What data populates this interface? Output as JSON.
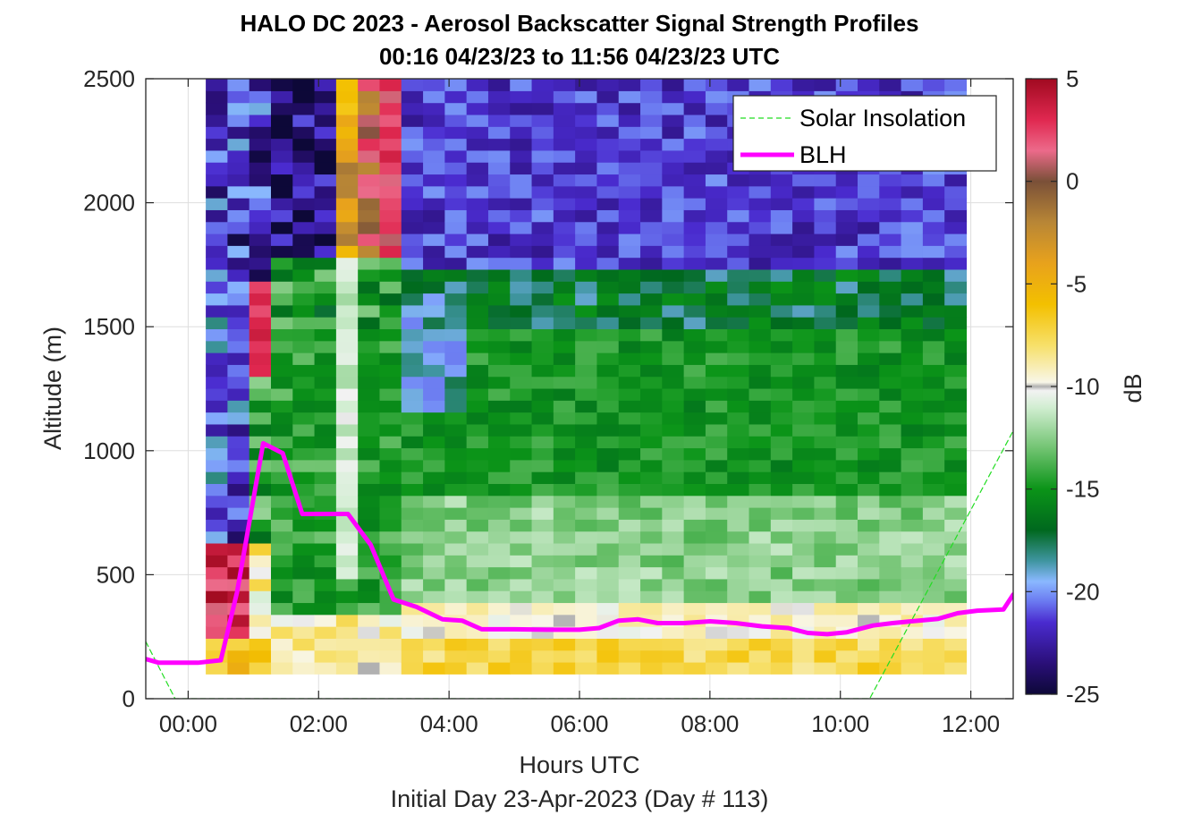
{
  "chart_data": {
    "type": "heatmap",
    "title_line1": "HALO DC 2023 - Aerosol Backscatter Signal Strength Profiles",
    "title_line2": "00:16 04/23/23 to 11:56 04/23/23  UTC",
    "xlabel": "Hours UTC",
    "footer": "Initial Day 23-Apr-2023 (Day # 113)",
    "ylabel": "Altitude (m)",
    "colorbar_label": "dB",
    "xlim": [
      -0.65,
      12.65
    ],
    "ylim": [
      0,
      2500
    ],
    "clim": [
      -25,
      5
    ],
    "x_ticks": [
      0,
      2,
      4,
      6,
      8,
      10,
      12
    ],
    "x_tick_labels": [
      "00:00",
      "02:00",
      "04:00",
      "06:00",
      "08:00",
      "10:00",
      "12:00"
    ],
    "y_ticks": [
      0,
      500,
      1000,
      1500,
      2000,
      2500
    ],
    "y_tick_labels": [
      "0",
      "500",
      "1000",
      "1500",
      "2000",
      "2500"
    ],
    "colorbar_ticks": [
      5,
      0,
      -5,
      -10,
      -15,
      -20,
      -25
    ],
    "colorbar_tick_labels": [
      "5",
      "0",
      "-5",
      "-10",
      "-15",
      "-20",
      "-25"
    ],
    "grid": true,
    "legend_position": "top-right",
    "heatmap": {
      "x_start": 0.27,
      "x_end": 11.93,
      "n_columns": 35,
      "y_bottom": 100,
      "y_top": 2500,
      "n_rows": 50
    },
    "series": [
      {
        "name": "Solar Insolation",
        "style": "dashed",
        "color": "#22dd22",
        "x": [
          -0.65,
          -0.2,
          10.45,
          12.65
        ],
        "y": [
          230,
          0,
          0,
          1080
        ]
      },
      {
        "name": "BLH",
        "style": "solid",
        "color": "#ff00ff",
        "x": [
          -0.65,
          -0.45,
          0.15,
          0.5,
          0.75,
          1.15,
          1.45,
          1.75,
          2.1,
          2.45,
          2.8,
          3.15,
          3.5,
          3.9,
          4.2,
          4.5,
          5.0,
          5.5,
          6.0,
          6.3,
          6.6,
          6.9,
          7.2,
          7.6,
          8.0,
          8.4,
          8.8,
          9.2,
          9.5,
          9.8,
          10.1,
          10.5,
          10.8,
          11.2,
          11.5,
          11.8,
          12.1,
          12.5,
          12.65
        ],
        "y": [
          160,
          145,
          145,
          155,
          430,
          1030,
          990,
          745,
          745,
          745,
          620,
          400,
          370,
          320,
          315,
          280,
          280,
          278,
          278,
          285,
          315,
          320,
          305,
          305,
          312,
          305,
          292,
          285,
          265,
          260,
          268,
          295,
          305,
          315,
          322,
          345,
          355,
          360,
          420
        ]
      }
    ],
    "colors": {
      "frame": "#262626",
      "grid": "#dedede"
    },
    "colorbar_stops": [
      {
        "value": -25,
        "color": "#0d0838"
      },
      {
        "value": -23.5,
        "color": "#2a0f78"
      },
      {
        "value": -21.5,
        "color": "#4a2bcf"
      },
      {
        "value": -20.5,
        "color": "#6a78f0"
      },
      {
        "value": -19.5,
        "color": "#8ab8ff"
      },
      {
        "value": -18.5,
        "color": "#3f95a0"
      },
      {
        "value": -17,
        "color": "#00681e"
      },
      {
        "value": -15,
        "color": "#0b9418"
      },
      {
        "value": -13,
        "color": "#72c472"
      },
      {
        "value": -11,
        "color": "#d2eed2"
      },
      {
        "value": -10.2,
        "color": "#f2f2f2"
      },
      {
        "value": -10,
        "color": "#b0b0b0"
      },
      {
        "value": -9.8,
        "color": "#f8f6e8"
      },
      {
        "value": -8,
        "color": "#f7e06a"
      },
      {
        "value": -6,
        "color": "#f3c000"
      },
      {
        "value": -4,
        "color": "#e8a21c"
      },
      {
        "value": -2,
        "color": "#b88636"
      },
      {
        "value": 0,
        "color": "#7a5038"
      },
      {
        "value": 1.5,
        "color": "#ec6a8a"
      },
      {
        "value": 3,
        "color": "#e02850"
      },
      {
        "value": 5,
        "color": "#a00a20"
      }
    ]
  }
}
